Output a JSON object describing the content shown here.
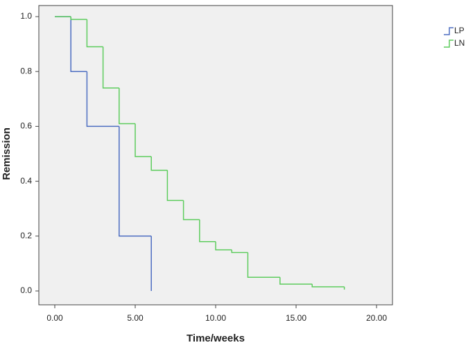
{
  "chart_data": {
    "type": "step",
    "xlabel": "Time/weeks",
    "ylabel": "Remission",
    "xlim": [
      0,
      20
    ],
    "ylim": [
      0,
      1
    ],
    "xticks": [
      {
        "value": 0,
        "label": "0.00"
      },
      {
        "value": 5,
        "label": "5.00"
      },
      {
        "value": 10,
        "label": "10.00"
      },
      {
        "value": 15,
        "label": "15.00"
      },
      {
        "value": 20,
        "label": "20.00"
      }
    ],
    "yticks": [
      {
        "value": 0,
        "label": "0.0"
      },
      {
        "value": 0.2,
        "label": "0.2"
      },
      {
        "value": 0.4,
        "label": "0.4"
      },
      {
        "value": 0.6,
        "label": "0.6"
      },
      {
        "value": 0.8,
        "label": "0.8"
      },
      {
        "value": 1,
        "label": "1.0"
      }
    ],
    "legend": "top-right",
    "series": [
      {
        "name": "LP",
        "color": "#4b6cc1",
        "x": [
          0,
          1,
          2,
          4,
          6
        ],
        "values": [
          1,
          0.8,
          0.6,
          0.2,
          0
        ]
      },
      {
        "name": "LN",
        "color": "#5ccc5c",
        "x": [
          0,
          1,
          2,
          3,
          4,
          5,
          6,
          7,
          8,
          9,
          10,
          11,
          12,
          14,
          16,
          18
        ],
        "values": [
          1,
          0.99,
          0.89,
          0.74,
          0.61,
          0.49,
          0.44,
          0.33,
          0.26,
          0.18,
          0.15,
          0.14,
          0.05,
          0.025,
          0.015,
          0.005
        ]
      }
    ]
  }
}
